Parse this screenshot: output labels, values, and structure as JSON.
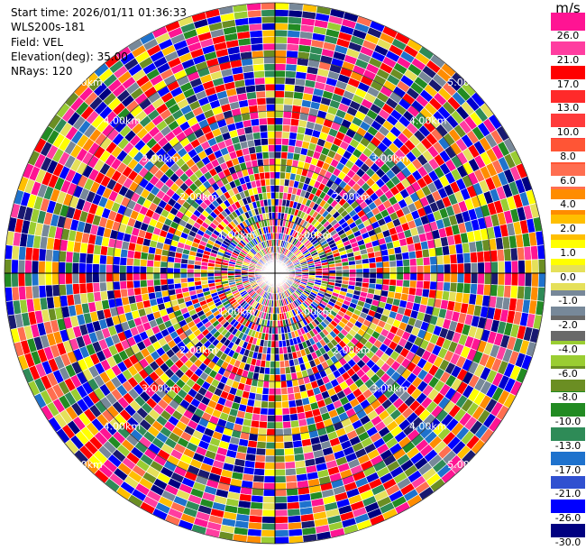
{
  "info": {
    "start_time": "Start time: 2026/01/11 01:36:33",
    "site": "WLS200s-181",
    "field": "Field: VEL",
    "elevation": "Elevation(deg): 35.00",
    "nrays": "NRays: 120"
  },
  "colorbar": {
    "unit": "m/s",
    "ticks": [
      "26.0",
      "21.0",
      "17.0",
      "13.0",
      "10.0",
      "8.0",
      "6.0",
      "4.0",
      "2.0",
      "1.0",
      "0.0",
      "-1.0",
      "-2.0",
      "-4.0",
      "-6.0",
      "-8.0",
      "-10.0",
      "-13.0",
      "-17.0",
      "-21.0",
      "-26.0",
      "-30.0"
    ],
    "colors": [
      "#ff1493",
      "#ff3da0",
      "#ff0000",
      "#ff2a2a",
      "#ff3b3b",
      "#ff5535",
      "#ff6e50",
      "#ff8c00",
      "#ffbf00",
      "#ffff00",
      "#e5e05a",
      "#778899",
      "#696969",
      "#9acd32",
      "#6b8e23",
      "#228b22",
      "#2e8b57",
      "#1e72cd",
      "#3050d0",
      "#0000ff",
      "#000080",
      "#1a1a5a"
    ]
  },
  "range_rings": {
    "labels": [
      "1.00km",
      "2.00km",
      "3.00km",
      "4.00km",
      "5.00km"
    ]
  }
}
